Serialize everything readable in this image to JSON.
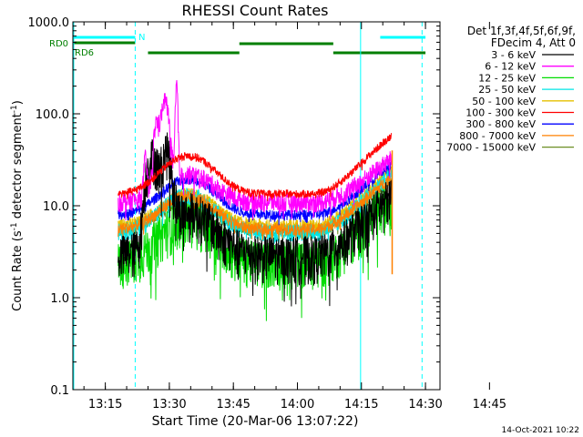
{
  "chart_data": {
    "type": "line",
    "title": "RHESSI Count Rates",
    "xlabel": "Start Time (20-Mar-06 13:07:22)",
    "ylabel_main": "Count Rate (s",
    "ylabel_exp": "-1",
    "ylabel_rest": " detector segment",
    "ylabel_end": ")",
    "y_scale": "log",
    "ylim": [
      0.1,
      1000.0
    ],
    "yticks": [
      "0.1",
      "1.0",
      "10.0",
      "100.0",
      "1000.0"
    ],
    "xlim_minutes": [
      0,
      86
    ],
    "xticks": [
      {
        "minute": 7.6,
        "label": "13:15"
      },
      {
        "minute": 22.6,
        "label": "13:30"
      },
      {
        "minute": 37.6,
        "label": "13:45"
      },
      {
        "minute": 52.6,
        "label": "14:00"
      },
      {
        "minute": 67.6,
        "label": "14:15"
      },
      {
        "minute": 82.6,
        "label": "14:30"
      },
      {
        "minute": 97.6,
        "label": "14:45"
      }
    ],
    "legend_header": [
      "Det 1f,3f,4f,5f,6f,9f,",
      "FDecim 4, Att 0"
    ],
    "series": [
      {
        "name": "3 - 6 keV",
        "color": "#000000"
      },
      {
        "name": "6 - 12 keV",
        "color": "#ff00ff"
      },
      {
        "name": "12 - 25 keV",
        "color": "#00dd00"
      },
      {
        "name": "25 - 50 keV",
        "color": "#00e5e5"
      },
      {
        "name": "50 - 100 keV",
        "color": "#e5c000"
      },
      {
        "name": "100 - 300 keV",
        "color": "#ff0000"
      },
      {
        "name": "300 - 800 keV",
        "color": "#0000ff"
      },
      {
        "name": "800 - 7000 keV",
        "color": "#ff8000"
      },
      {
        "name": "7000 - 15000 keV",
        "color": "#6b8e23"
      }
    ],
    "attenuator_labels": {
      "rd0": "RD0",
      "rd6": "RD6",
      "n": "N"
    },
    "timestamp": "14-Oct-2021 10:22"
  }
}
